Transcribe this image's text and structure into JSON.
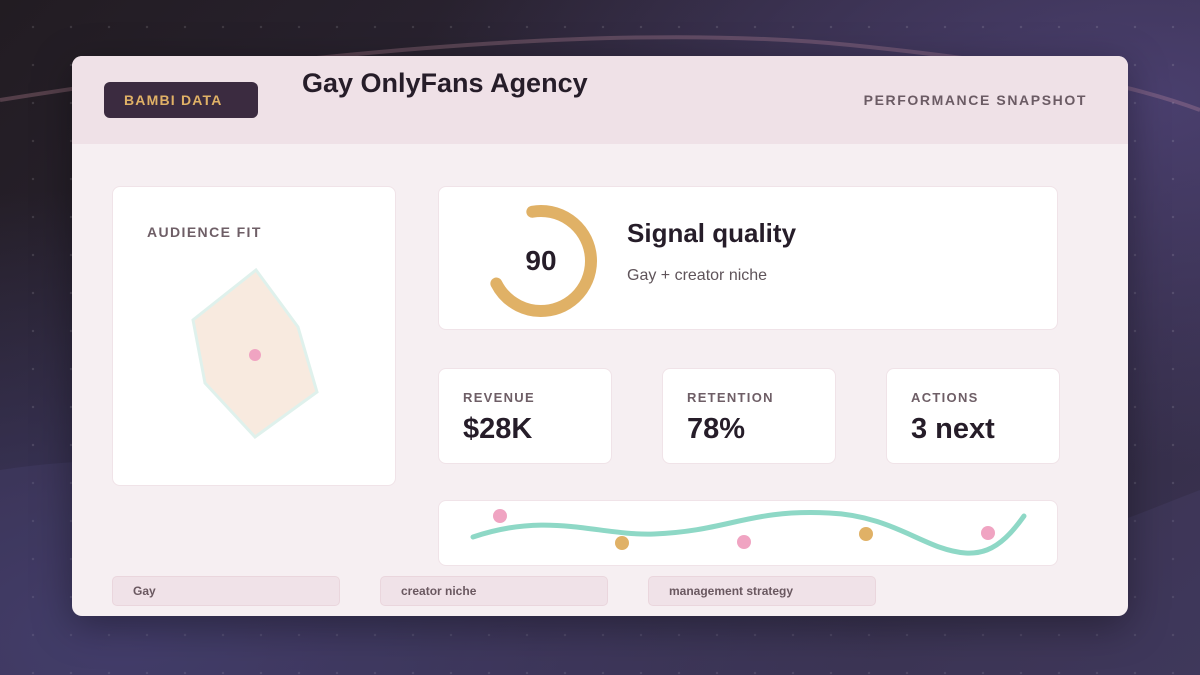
{
  "header": {
    "brand": "BAMBI DATA",
    "title": "Gay OnlyFans Agency",
    "subtitle": "PERFORMANCE SNAPSHOT"
  },
  "audience": {
    "title": "AUDIENCE FIT"
  },
  "signal": {
    "score": "90",
    "score_fraction": 0.9,
    "title": "Signal quality",
    "subtitle": "Gay + creator niche"
  },
  "stats": [
    {
      "label": "REVENUE",
      "value": "$28K"
    },
    {
      "label": "RETENTION",
      "value": "78%"
    },
    {
      "label": "ACTIONS",
      "value": "3 next"
    }
  ],
  "tags": [
    "Gay",
    "creator niche",
    "management strategy"
  ],
  "colors": {
    "accent_gold": "#e0b166",
    "accent_pink": "#f0a4c2",
    "accent_teal": "#8ed8c6",
    "radar_fill": "#f8eadf",
    "dark": "#261d29"
  },
  "icons": {
    "trend": "wave-line-icon",
    "gauge": "ring-gauge-icon"
  }
}
